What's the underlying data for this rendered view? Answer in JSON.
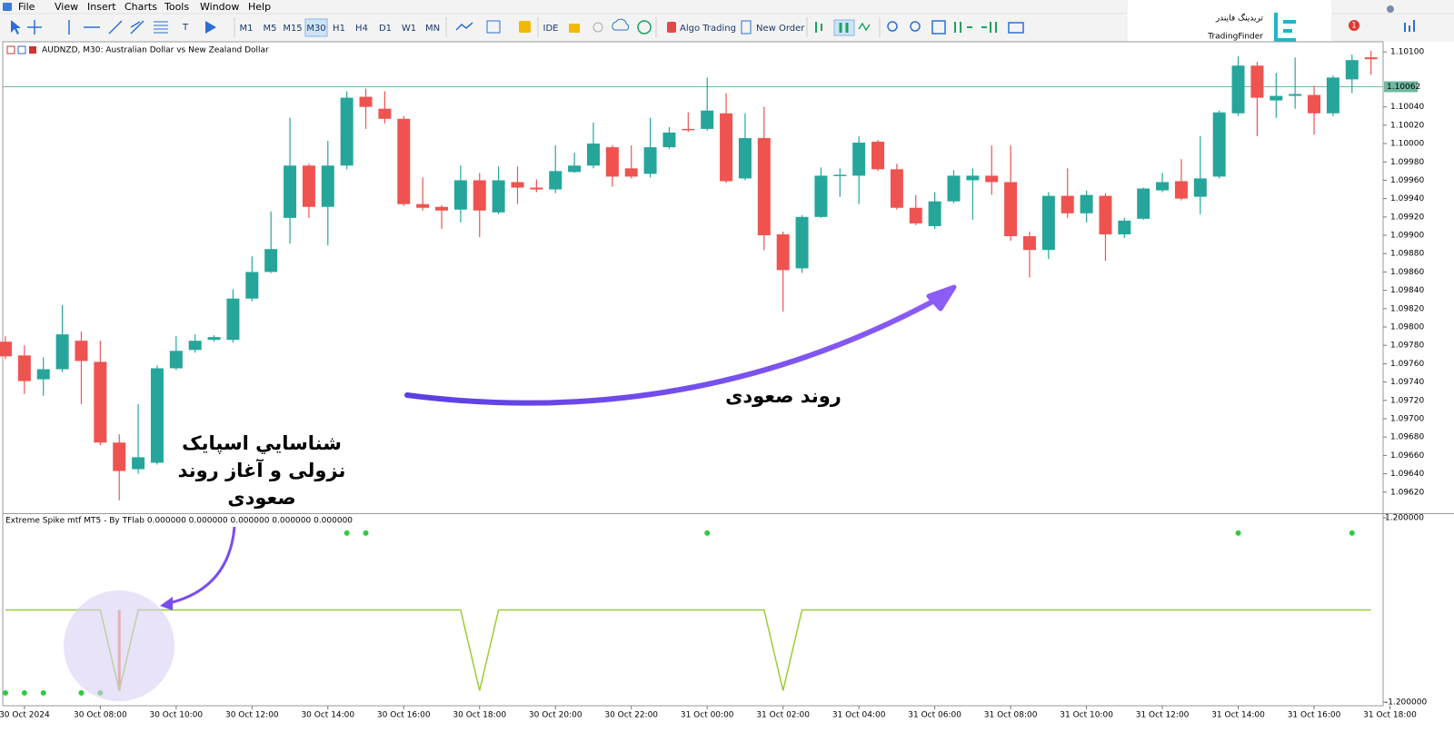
{
  "menu": [
    "File",
    "View",
    "Insert",
    "Charts",
    "Tools",
    "Window",
    "Help"
  ],
  "toolbar": {
    "timeframes": [
      "M1",
      "M5",
      "M15",
      "M30",
      "H1",
      "H4",
      "D1",
      "W1",
      "MN"
    ],
    "active_timeframe_index": 3,
    "buttons": [
      "IDE",
      "Algo Trading",
      "New Order"
    ],
    "badge": 1
  },
  "logo": {
    "fa": "تریدینگ فایندر",
    "en": "TradingFinder"
  },
  "annotations": {
    "trend": "روند صعودی",
    "spike": [
      "شناسايي اسپايک",
      "نزولی و آغاز روند",
      "صعودی"
    ]
  },
  "chart_data": [
    {
      "type": "candlestick",
      "title": "AUDNZD, M30: Australian Dollar vs New Zealand Dollar",
      "categories": [
        null,
        "30 Oct 2024",
        null,
        null,
        null,
        "30 Oct 08:00",
        null,
        null,
        null,
        "30 Oct 10:00",
        null,
        null,
        null,
        "30 Oct 12:00",
        null,
        null,
        null,
        "30 Oct 14:00",
        null,
        null,
        null,
        "30 Oct 16:00",
        null,
        null,
        null,
        "30 Oct 18:00",
        null,
        null,
        null,
        "30 Oct 20:00",
        null,
        null,
        null,
        "30 Oct 22:00",
        null,
        null,
        null,
        "31 Oct 00:00",
        null,
        null,
        null,
        "31 Oct 02:00",
        null,
        null,
        null,
        "31 Oct 04:00",
        null,
        null,
        null,
        "31 Oct 06:00",
        null,
        null,
        null,
        "31 Oct 08:00",
        null,
        null,
        null,
        "31 Oct 10:00",
        null,
        null,
        null,
        "31 Oct 12:00",
        null,
        null,
        null,
        "31 Oct 14:00",
        null,
        null,
        null,
        "31 Oct 16:00",
        null,
        null,
        null,
        "31 Oct 18:00"
      ],
      "open": [
        1.09784,
        1.09769,
        1.09743,
        1.09754,
        1.09785,
        1.09762,
        1.09674,
        1.09645,
        1.09652,
        1.09755,
        1.09775,
        1.09786,
        1.09786,
        1.09831,
        1.0986,
        1.09919,
        1.09976,
        1.09931,
        1.09976,
        1.10051,
        1.10038,
        1.10027,
        1.09934,
        1.09931,
        1.09928,
        1.0996,
        1.09925,
        1.09958,
        1.09952,
        1.0995,
        1.09969,
        1.09976,
        1.09996,
        1.09973,
        1.09967,
        1.09996,
        1.10016,
        1.10016,
        1.10033,
        1.09962,
        1.10006,
        1.09901,
        1.09864,
        1.0992,
        1.09965,
        1.09965,
        1.10002,
        1.09972,
        1.0993,
        1.0991,
        1.09937,
        1.0996,
        1.09965,
        1.09958,
        1.09899,
        1.09884,
        1.09943,
        1.09924,
        1.09943,
        1.09901,
        1.09918,
        1.09949,
        1.09959,
        1.09942,
        1.09964,
        1.10033,
        1.10085,
        1.10047,
        1.10052,
        1.10053,
        1.10033,
        1.1007,
        1.10094,
        null
      ],
      "high": [
        1.0979,
        1.0978,
        1.09767,
        1.09824,
        1.09795,
        1.09785,
        1.09683,
        1.09716,
        1.09758,
        1.0979,
        1.09792,
        1.09791,
        1.09841,
        1.09877,
        1.09926,
        1.10028,
        1.09978,
        1.10003,
        1.10057,
        1.1006,
        1.10057,
        1.1003,
        1.09963,
        1.09933,
        1.09976,
        1.09968,
        1.09975,
        1.09975,
        1.09961,
        1.09998,
        1.0999,
        1.10023,
        1.09998,
        1.09998,
        1.10028,
        1.10018,
        1.10034,
        1.10072,
        1.10055,
        1.10033,
        1.1004,
        1.09904,
        1.09922,
        1.09974,
        1.09973,
        1.10008,
        1.10004,
        1.09978,
        1.09944,
        1.09947,
        1.09971,
        1.09973,
        1.09998,
        1.09998,
        1.09904,
        1.09947,
        1.09973,
        1.09949,
        1.09946,
        1.09919,
        1.09952,
        1.09968,
        1.09983,
        1.10008,
        1.10036,
        1.10095,
        1.10089,
        1.10077,
        1.10094,
        1.10063,
        1.10074,
        1.10097,
        1.10101,
        null
      ],
      "low": [
        1.09765,
        1.09727,
        1.09725,
        1.09751,
        1.09716,
        1.09671,
        1.09611,
        1.0964,
        1.0965,
        1.09753,
        1.09772,
        1.09784,
        1.09783,
        1.09828,
        1.09859,
        1.09891,
        1.09919,
        1.09889,
        1.09972,
        1.10016,
        1.10022,
        1.09932,
        1.09927,
        1.09907,
        1.09914,
        1.09898,
        1.09923,
        1.09934,
        1.09947,
        1.09946,
        1.09968,
        1.09973,
        1.09953,
        1.09962,
        1.09963,
        1.09994,
        1.10013,
        1.10014,
        1.09957,
        1.0996,
        1.09884,
        1.09817,
        1.09859,
        1.09919,
        1.09942,
        1.09934,
        1.0997,
        1.09928,
        1.09911,
        1.09907,
        1.09935,
        1.09917,
        1.09944,
        1.09894,
        1.09854,
        1.09874,
        1.09919,
        1.09914,
        1.09872,
        1.09897,
        1.09917,
        1.09947,
        1.09938,
        1.09923,
        1.09962,
        1.1003,
        1.10008,
        1.10028,
        1.10038,
        1.1001,
        1.1003,
        1.10055,
        1.10075,
        null
      ],
      "close": [
        1.09768,
        1.09741,
        1.09754,
        1.09792,
        1.09763,
        1.09674,
        1.09643,
        1.09658,
        1.09755,
        1.09774,
        1.09785,
        1.09789,
        1.09831,
        1.0986,
        1.09885,
        1.09976,
        1.09931,
        1.09976,
        1.1005,
        1.1004,
        1.10027,
        1.09934,
        1.0993,
        1.09927,
        1.0996,
        1.09927,
        1.0996,
        1.09952,
        1.0995,
        1.0997,
        1.09976,
        1.1,
        1.09964,
        1.09964,
        1.09996,
        1.10012,
        1.10015,
        1.10036,
        1.09959,
        1.10006,
        1.099,
        1.09862,
        1.0992,
        1.09965,
        1.09966,
        1.10001,
        1.09972,
        1.0993,
        1.09913,
        1.09937,
        1.09965,
        1.09965,
        1.09958,
        1.09899,
        1.09884,
        1.09943,
        1.09924,
        1.09944,
        1.09901,
        1.09916,
        1.09951,
        1.09958,
        1.0994,
        1.09962,
        1.10034,
        1.10085,
        1.1005,
        1.10052,
        1.10054,
        1.10033,
        1.10072,
        1.10091,
        1.10092,
        null
      ],
      "up_color": "#26a69a",
      "down_color": "#ef5350",
      "current_price": 1.10062,
      "current_price_color": "#6fb8a2",
      "ylim": [
        1.09597,
        1.1011
      ],
      "yticks": [
        {
          "value": 1.0962,
          "label": "1.09620"
        },
        {
          "value": 1.0964,
          "label": "1.09640"
        },
        {
          "value": 1.0966,
          "label": "1.09660"
        },
        {
          "value": 1.0968,
          "label": "1.09680"
        },
        {
          "value": 1.097,
          "label": "1.09700"
        },
        {
          "value": 1.0972,
          "label": "1.09720"
        },
        {
          "value": 1.0974,
          "label": "1.09740"
        },
        {
          "value": 1.0976,
          "label": "1.09760"
        },
        {
          "value": 1.0978,
          "label": "1.09780"
        },
        {
          "value": 1.098,
          "label": "1.09800"
        },
        {
          "value": 1.0982,
          "label": "1.09820"
        },
        {
          "value": 1.0984,
          "label": "1.09840"
        },
        {
          "value": 1.0986,
          "label": "1.09860"
        },
        {
          "value": 1.0988,
          "label": "1.09880"
        },
        {
          "value": 1.099,
          "label": "1.09900"
        },
        {
          "value": 1.0992,
          "label": "1.09920"
        },
        {
          "value": 1.0994,
          "label": "1.09940"
        },
        {
          "value": 1.0996,
          "label": "1.09960"
        },
        {
          "value": 1.0998,
          "label": "1.09980"
        },
        {
          "value": 1.1,
          "label": "1.10000"
        },
        {
          "value": 1.1002,
          "label": "1.10020"
        },
        {
          "value": 1.1004,
          "label": "1.10040"
        },
        {
          "value": 1.101,
          "label": "1.10100"
        }
      ],
      "grid": false
    },
    {
      "type": "line",
      "title": "Extreme Spike mtf MT5 - By TFlab 0.000000 0.000000 0.000000 0.000000 0.000000",
      "line": {
        "color": "#9acd32",
        "values": [
          0,
          0,
          0,
          0,
          0,
          0,
          -1.05,
          0,
          0,
          0,
          0,
          0,
          0,
          0,
          0,
          0,
          0,
          0,
          0,
          0,
          0,
          0,
          0,
          0,
          0,
          -1.05,
          0,
          0,
          0,
          0,
          0,
          0,
          0,
          0,
          0,
          0,
          0,
          0,
          0,
          0,
          0,
          -1.05,
          0,
          0,
          0,
          0,
          0,
          0,
          0,
          0,
          0,
          0,
          0,
          0,
          0,
          0,
          0,
          0,
          0,
          0,
          0,
          0,
          0,
          0,
          0,
          0,
          0,
          0,
          0,
          0,
          0,
          0,
          0,
          null
        ]
      },
      "histogram": {
        "color": "#e8825a",
        "values": [
          null,
          null,
          null,
          null,
          null,
          null,
          -1.05,
          null,
          null,
          null,
          null,
          null,
          null,
          null,
          null,
          null,
          null,
          null,
          null,
          null,
          null,
          null,
          null,
          null,
          null,
          null,
          null,
          null,
          null,
          null,
          null,
          null,
          null,
          null,
          null,
          null,
          null,
          null,
          null,
          null,
          null,
          null,
          null,
          null,
          null,
          null,
          null,
          null,
          null,
          null,
          null,
          null,
          null,
          null,
          null,
          null,
          null,
          null,
          null,
          null,
          null,
          null,
          null,
          null,
          null,
          null,
          null,
          null,
          null,
          null,
          null,
          null,
          null,
          null
        ]
      },
      "dots": {
        "color": "#2ecc40",
        "values": [
          -1.08,
          -1.08,
          -1.08,
          null,
          -1.08,
          -1.08,
          null,
          null,
          null,
          null,
          null,
          null,
          null,
          null,
          null,
          null,
          null,
          null,
          1,
          1,
          null,
          null,
          null,
          null,
          null,
          null,
          null,
          null,
          null,
          null,
          null,
          null,
          null,
          null,
          null,
          null,
          null,
          1,
          null,
          null,
          null,
          null,
          null,
          null,
          null,
          null,
          null,
          null,
          null,
          null,
          null,
          null,
          null,
          null,
          null,
          null,
          null,
          null,
          null,
          null,
          null,
          null,
          null,
          null,
          null,
          1,
          null,
          null,
          null,
          null,
          null,
          1,
          null,
          null
        ]
      },
      "ylim": [
        -1.247,
        1.235
      ],
      "yticks": [
        {
          "value": 1.2,
          "label": "1.200000"
        },
        {
          "value": -1.2,
          "label": "-1.200000"
        }
      ]
    }
  ]
}
